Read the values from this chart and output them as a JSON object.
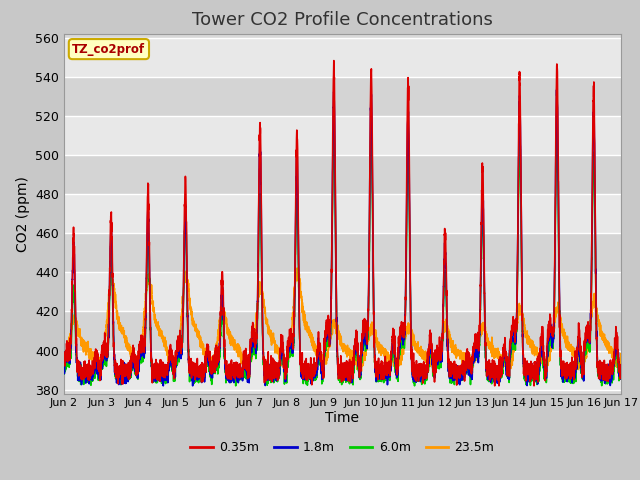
{
  "title": "Tower CO2 Profile Concentrations",
  "xlabel": "Time",
  "ylabel": "CO2 (ppm)",
  "ylim": [
    378,
    562
  ],
  "yticks": [
    380,
    400,
    420,
    440,
    460,
    480,
    500,
    520,
    540,
    560
  ],
  "legend_label": "TZ_co2prof",
  "line_labels": [
    "0.35m",
    "1.8m",
    "6.0m",
    "23.5m"
  ],
  "line_colors": [
    "#dd0000",
    "#0000cc",
    "#00cc00",
    "#ff9900"
  ],
  "xtick_labels": [
    "Jun 2",
    "Jun 3",
    "Jun 4",
    "Jun 5",
    "Jun 6",
    "Jun 7",
    "Jun 8",
    "Jun 9",
    "Jun 10",
    "Jun 11",
    "Jun 12",
    "Jun 13",
    "Jun 14",
    "Jun 15",
    "Jun 16",
    "Jun 17"
  ],
  "background_color": "#c8c8c8",
  "plot_bg_color": "#d8d8d8",
  "grid_color": "#f0f0f0",
  "title_fontsize": 13,
  "axis_fontsize": 10,
  "tick_fontsize": 9
}
